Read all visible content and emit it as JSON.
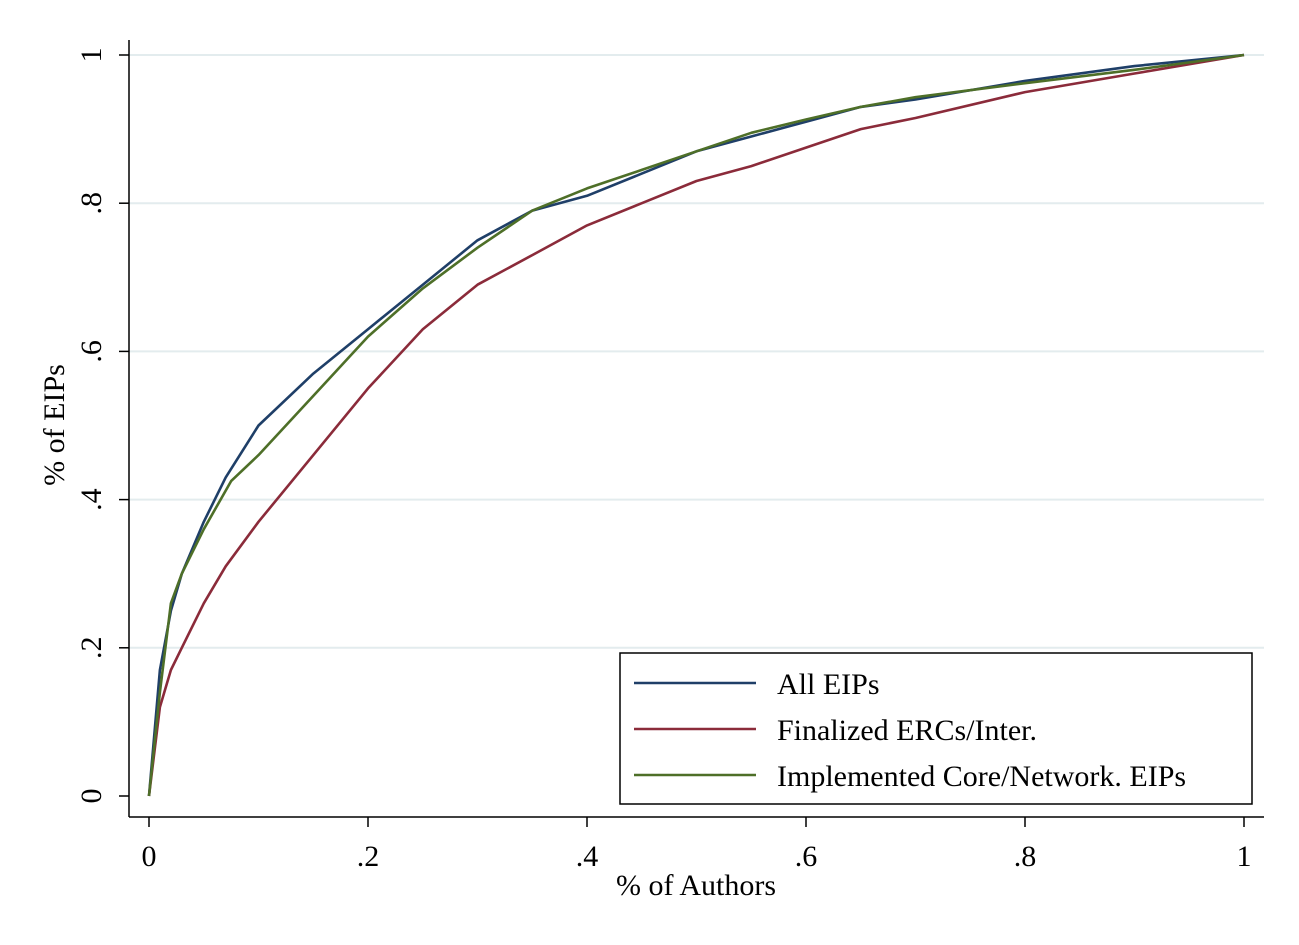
{
  "chart_data": {
    "type": "line",
    "xlabel": "% of Authors",
    "ylabel": "% of EIPs",
    "xlim": [
      0,
      1
    ],
    "ylim": [
      0,
      1
    ],
    "xticks": [
      {
        "value": 0,
        "label": "0"
      },
      {
        "value": 0.2,
        "label": ".2"
      },
      {
        "value": 0.4,
        "label": ".4"
      },
      {
        "value": 0.6,
        "label": ".6"
      },
      {
        "value": 0.8,
        "label": ".8"
      },
      {
        "value": 1,
        "label": "1"
      }
    ],
    "yticks": [
      {
        "value": 0,
        "label": "0"
      },
      {
        "value": 0.2,
        "label": ".2"
      },
      {
        "value": 0.4,
        "label": ".4"
      },
      {
        "value": 0.6,
        "label": ".6"
      },
      {
        "value": 0.8,
        "label": ".8"
      },
      {
        "value": 1,
        "label": "1"
      }
    ],
    "grid": "horizontal",
    "legend_position": "bottom-right",
    "series": [
      {
        "name": "All EIPs",
        "color": "#1f3f68",
        "x": [
          0,
          0.01,
          0.02,
          0.03,
          0.05,
          0.07,
          0.1,
          0.15,
          0.2,
          0.25,
          0.3,
          0.35,
          0.4,
          0.45,
          0.5,
          0.55,
          0.6,
          0.65,
          0.7,
          0.8,
          0.9,
          1.0
        ],
        "y": [
          0,
          0.17,
          0.25,
          0.3,
          0.37,
          0.43,
          0.5,
          0.57,
          0.63,
          0.69,
          0.75,
          0.79,
          0.81,
          0.84,
          0.87,
          0.89,
          0.91,
          0.93,
          0.94,
          0.965,
          0.985,
          1.0
        ]
      },
      {
        "name": "Finalized ERCs/Inter.",
        "color": "#8b2b3a",
        "x": [
          0,
          0.01,
          0.02,
          0.03,
          0.05,
          0.07,
          0.1,
          0.15,
          0.2,
          0.25,
          0.3,
          0.35,
          0.4,
          0.45,
          0.5,
          0.55,
          0.6,
          0.65,
          0.7,
          0.8,
          0.9,
          1.0
        ],
        "y": [
          0,
          0.12,
          0.17,
          0.2,
          0.26,
          0.31,
          0.37,
          0.46,
          0.55,
          0.63,
          0.69,
          0.73,
          0.77,
          0.8,
          0.83,
          0.85,
          0.875,
          0.9,
          0.915,
          0.95,
          0.975,
          1.0
        ]
      },
      {
        "name": "Implemented Core/Network. EIPs",
        "color": "#4e6f28",
        "x": [
          0,
          0.01,
          0.02,
          0.03,
          0.05,
          0.075,
          0.1,
          0.15,
          0.2,
          0.25,
          0.3,
          0.35,
          0.4,
          0.45,
          0.5,
          0.55,
          0.6,
          0.65,
          0.7,
          0.8,
          0.9,
          1.0
        ],
        "y": [
          0,
          0.14,
          0.26,
          0.3,
          0.36,
          0.425,
          0.46,
          0.54,
          0.62,
          0.685,
          0.74,
          0.79,
          0.82,
          0.845,
          0.87,
          0.895,
          0.913,
          0.93,
          0.943,
          0.962,
          0.98,
          1.0
        ]
      }
    ]
  }
}
